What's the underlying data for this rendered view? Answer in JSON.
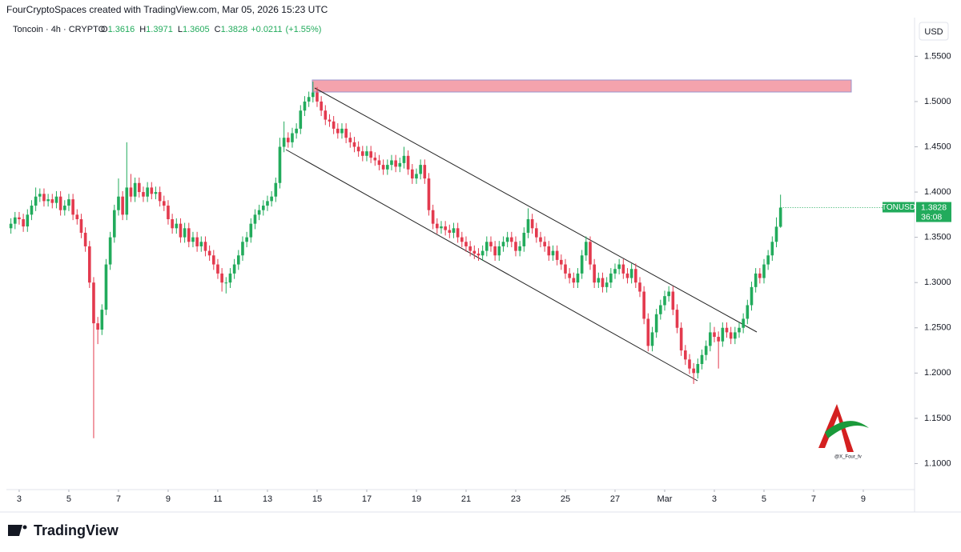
{
  "header": {
    "credit": "FourCryptoSpaces created with TradingView.com, Mar 05, 2026 15:23 UTC",
    "watermark": "@X_Four_fv",
    "brand": "TradingView"
  },
  "chart_data": {
    "type": "candlestick",
    "title": "Toncoin · 4h · CRYPTO",
    "ohlc_legend": {
      "labels": [
        "O",
        "H",
        "L",
        "C"
      ],
      "values": [
        1.3616,
        1.3971,
        1.3605,
        1.3828
      ],
      "change": "+0.0211",
      "change_pct": "(+1.55%)"
    },
    "currency": "USD",
    "price_tag": {
      "symbol": "TONUSD",
      "countdown": "36:08"
    },
    "up_color": "#22ab5c",
    "down_color": "#e33a4e",
    "xlim": [
      -0.7,
      218
    ],
    "ylim": [
      1.073,
      1.568
    ],
    "xticks": [
      {
        "value": 2,
        "label": "3"
      },
      {
        "value": 14,
        "label": "5"
      },
      {
        "value": 26,
        "label": "7"
      },
      {
        "value": 38,
        "label": "9"
      },
      {
        "value": 50,
        "label": "11"
      },
      {
        "value": 62,
        "label": "13"
      },
      {
        "value": 74,
        "label": "15"
      },
      {
        "value": 86,
        "label": "17"
      },
      {
        "value": 98,
        "label": "19"
      },
      {
        "value": 110,
        "label": "21"
      },
      {
        "value": 122,
        "label": "23"
      },
      {
        "value": 134,
        "label": "25"
      },
      {
        "value": 146,
        "label": "27"
      },
      {
        "value": 158,
        "label": "Mar"
      },
      {
        "value": 170,
        "label": "3"
      },
      {
        "value": 182,
        "label": "5"
      },
      {
        "value": 194,
        "label": "7"
      },
      {
        "value": 206,
        "label": "9"
      }
    ],
    "yticks": [
      {
        "value": 1.1,
        "label": "1.1000"
      },
      {
        "value": 1.15,
        "label": "1.1500"
      },
      {
        "value": 1.2,
        "label": "1.2000"
      },
      {
        "value": 1.25,
        "label": "1.2500"
      },
      {
        "value": 1.3,
        "label": "1.3000"
      },
      {
        "value": 1.35,
        "label": "1.3500"
      },
      {
        "value": 1.4,
        "label": "1.4000"
      },
      {
        "value": 1.45,
        "label": "1.4500"
      },
      {
        "value": 1.5,
        "label": "1.5000"
      },
      {
        "value": 1.55,
        "label": "1.5500"
      }
    ],
    "candles": [
      [
        1.36,
        1.371,
        1.354,
        1.365
      ],
      [
        1.365,
        1.378,
        1.359,
        1.372
      ],
      [
        1.372,
        1.378,
        1.364,
        1.37
      ],
      [
        1.37,
        1.376,
        1.356,
        1.362
      ],
      [
        1.362,
        1.381,
        1.356,
        1.375
      ],
      [
        1.375,
        1.391,
        1.369,
        1.385
      ],
      [
        1.385,
        1.405,
        1.379,
        1.395
      ],
      [
        1.395,
        1.404,
        1.389,
        1.398
      ],
      [
        1.398,
        1.404,
        1.384,
        1.39
      ],
      [
        1.39,
        1.398,
        1.384,
        1.392
      ],
      [
        1.392,
        1.398,
        1.382,
        1.388
      ],
      [
        1.388,
        1.401,
        1.382,
        1.395
      ],
      [
        1.395,
        1.401,
        1.374,
        1.38
      ],
      [
        1.38,
        1.391,
        1.374,
        1.385
      ],
      [
        1.385,
        1.398,
        1.379,
        1.392
      ],
      [
        1.392,
        1.398,
        1.369,
        1.375
      ],
      [
        1.375,
        1.381,
        1.364,
        1.37
      ],
      [
        1.37,
        1.376,
        1.349,
        1.355
      ],
      [
        1.355,
        1.361,
        1.334,
        1.34
      ],
      [
        1.34,
        1.346,
        1.294,
        1.3
      ],
      [
        1.3,
        1.306,
        1.128,
        1.255
      ],
      [
        1.255,
        1.262,
        1.232,
        1.248
      ],
      [
        1.248,
        1.276,
        1.242,
        1.27
      ],
      [
        1.27,
        1.326,
        1.264,
        1.32
      ],
      [
        1.32,
        1.356,
        1.314,
        1.35
      ],
      [
        1.35,
        1.386,
        1.344,
        1.38
      ],
      [
        1.38,
        1.415,
        1.374,
        1.395
      ],
      [
        1.395,
        1.401,
        1.369,
        1.375
      ],
      [
        1.375,
        1.455,
        1.369,
        1.405
      ],
      [
        1.405,
        1.42,
        1.389,
        1.395
      ],
      [
        1.395,
        1.416,
        1.389,
        1.41
      ],
      [
        1.41,
        1.416,
        1.394,
        1.4
      ],
      [
        1.4,
        1.406,
        1.389,
        1.395
      ],
      [
        1.395,
        1.411,
        1.389,
        1.405
      ],
      [
        1.405,
        1.411,
        1.392,
        1.398
      ],
      [
        1.398,
        1.406,
        1.392,
        1.4
      ],
      [
        1.4,
        1.406,
        1.384,
        1.39
      ],
      [
        1.39,
        1.396,
        1.379,
        1.385
      ],
      [
        1.385,
        1.391,
        1.364,
        1.37
      ],
      [
        1.37,
        1.376,
        1.354,
        1.36
      ],
      [
        1.36,
        1.371,
        1.354,
        1.365
      ],
      [
        1.365,
        1.371,
        1.344,
        1.35
      ],
      [
        1.35,
        1.366,
        1.344,
        1.36
      ],
      [
        1.36,
        1.366,
        1.339,
        1.345
      ],
      [
        1.345,
        1.356,
        1.339,
        1.35
      ],
      [
        1.35,
        1.356,
        1.334,
        1.34
      ],
      [
        1.34,
        1.351,
        1.334,
        1.345
      ],
      [
        1.345,
        1.351,
        1.329,
        1.335
      ],
      [
        1.335,
        1.341,
        1.324,
        1.33
      ],
      [
        1.33,
        1.336,
        1.314,
        1.32
      ],
      [
        1.32,
        1.326,
        1.304,
        1.31
      ],
      [
        1.31,
        1.316,
        1.29,
        1.3
      ],
      [
        1.3,
        1.306,
        1.288,
        1.3
      ],
      [
        1.3,
        1.316,
        1.294,
        1.31
      ],
      [
        1.31,
        1.326,
        1.304,
        1.32
      ],
      [
        1.32,
        1.336,
        1.314,
        1.33
      ],
      [
        1.33,
        1.351,
        1.324,
        1.345
      ],
      [
        1.345,
        1.356,
        1.339,
        1.35
      ],
      [
        1.35,
        1.371,
        1.344,
        1.365
      ],
      [
        1.365,
        1.381,
        1.359,
        1.375
      ],
      [
        1.375,
        1.386,
        1.369,
        1.38
      ],
      [
        1.38,
        1.391,
        1.374,
        1.385
      ],
      [
        1.385,
        1.396,
        1.379,
        1.39
      ],
      [
        1.39,
        1.401,
        1.384,
        1.395
      ],
      [
        1.395,
        1.416,
        1.389,
        1.41
      ],
      [
        1.41,
        1.46,
        1.404,
        1.45
      ],
      [
        1.45,
        1.478,
        1.444,
        1.46
      ],
      [
        1.46,
        1.466,
        1.449,
        1.455
      ],
      [
        1.455,
        1.471,
        1.449,
        1.465
      ],
      [
        1.465,
        1.476,
        1.459,
        1.47
      ],
      [
        1.47,
        1.496,
        1.464,
        1.49
      ],
      [
        1.49,
        1.506,
        1.484,
        1.5
      ],
      [
        1.5,
        1.511,
        1.494,
        1.505
      ],
      [
        1.505,
        1.522,
        1.499,
        1.51
      ],
      [
        1.51,
        1.516,
        1.494,
        1.5
      ],
      [
        1.5,
        1.506,
        1.484,
        1.49
      ],
      [
        1.49,
        1.496,
        1.474,
        1.48
      ],
      [
        1.48,
        1.486,
        1.472,
        1.478
      ],
      [
        1.478,
        1.484,
        1.464,
        1.47
      ],
      [
        1.47,
        1.476,
        1.459,
        1.465
      ],
      [
        1.465,
        1.476,
        1.459,
        1.47
      ],
      [
        1.47,
        1.476,
        1.454,
        1.46
      ],
      [
        1.46,
        1.466,
        1.449,
        1.455
      ],
      [
        1.455,
        1.461,
        1.444,
        1.45
      ],
      [
        1.45,
        1.456,
        1.439,
        1.445
      ],
      [
        1.445,
        1.451,
        1.434,
        1.44
      ],
      [
        1.44,
        1.451,
        1.434,
        1.445
      ],
      [
        1.445,
        1.451,
        1.432,
        1.438
      ],
      [
        1.438,
        1.444,
        1.429,
        1.435
      ],
      [
        1.435,
        1.441,
        1.424,
        1.43
      ],
      [
        1.43,
        1.436,
        1.419,
        1.425
      ],
      [
        1.425,
        1.436,
        1.419,
        1.43
      ],
      [
        1.43,
        1.441,
        1.424,
        1.435
      ],
      [
        1.435,
        1.441,
        1.422,
        1.428
      ],
      [
        1.428,
        1.438,
        1.422,
        1.432
      ],
      [
        1.432,
        1.45,
        1.426,
        1.44
      ],
      [
        1.44,
        1.446,
        1.419,
        1.425
      ],
      [
        1.425,
        1.431,
        1.409,
        1.415
      ],
      [
        1.415,
        1.426,
        1.409,
        1.42
      ],
      [
        1.42,
        1.436,
        1.414,
        1.43
      ],
      [
        1.43,
        1.436,
        1.409,
        1.415
      ],
      [
        1.415,
        1.421,
        1.374,
        1.38
      ],
      [
        1.38,
        1.386,
        1.359,
        1.365
      ],
      [
        1.365,
        1.371,
        1.354,
        1.36
      ],
      [
        1.36,
        1.368,
        1.354,
        1.362
      ],
      [
        1.362,
        1.368,
        1.352,
        1.358
      ],
      [
        1.358,
        1.364,
        1.349,
        1.355
      ],
      [
        1.355,
        1.366,
        1.349,
        1.36
      ],
      [
        1.36,
        1.366,
        1.344,
        1.35
      ],
      [
        1.35,
        1.356,
        1.339,
        1.345
      ],
      [
        1.345,
        1.351,
        1.334,
        1.34
      ],
      [
        1.34,
        1.346,
        1.329,
        1.335
      ],
      [
        1.335,
        1.341,
        1.326,
        1.332
      ],
      [
        1.332,
        1.338,
        1.324,
        1.33
      ],
      [
        1.33,
        1.341,
        1.324,
        1.335
      ],
      [
        1.335,
        1.351,
        1.329,
        1.345
      ],
      [
        1.345,
        1.351,
        1.334,
        1.34
      ],
      [
        1.34,
        1.346,
        1.324,
        1.33
      ],
      [
        1.33,
        1.346,
        1.324,
        1.34
      ],
      [
        1.34,
        1.351,
        1.334,
        1.345
      ],
      [
        1.345,
        1.356,
        1.339,
        1.35
      ],
      [
        1.35,
        1.356,
        1.339,
        1.345
      ],
      [
        1.345,
        1.351,
        1.329,
        1.335
      ],
      [
        1.335,
        1.346,
        1.329,
        1.34
      ],
      [
        1.34,
        1.361,
        1.334,
        1.355
      ],
      [
        1.355,
        1.382,
        1.349,
        1.37
      ],
      [
        1.37,
        1.376,
        1.354,
        1.36
      ],
      [
        1.36,
        1.366,
        1.344,
        1.35
      ],
      [
        1.35,
        1.356,
        1.339,
        1.345
      ],
      [
        1.345,
        1.351,
        1.334,
        1.34
      ],
      [
        1.34,
        1.346,
        1.324,
        1.33
      ],
      [
        1.33,
        1.341,
        1.324,
        1.335
      ],
      [
        1.335,
        1.341,
        1.319,
        1.325
      ],
      [
        1.325,
        1.331,
        1.314,
        1.32
      ],
      [
        1.32,
        1.326,
        1.304,
        1.31
      ],
      [
        1.31,
        1.316,
        1.299,
        1.305
      ],
      [
        1.305,
        1.311,
        1.294,
        1.3
      ],
      [
        1.3,
        1.316,
        1.294,
        1.31
      ],
      [
        1.31,
        1.336,
        1.304,
        1.33
      ],
      [
        1.33,
        1.351,
        1.324,
        1.345
      ],
      [
        1.345,
        1.351,
        1.314,
        1.32
      ],
      [
        1.32,
        1.326,
        1.294,
        1.3
      ],
      [
        1.3,
        1.311,
        1.294,
        1.305
      ],
      [
        1.305,
        1.311,
        1.289,
        1.295
      ],
      [
        1.295,
        1.306,
        1.289,
        1.3
      ],
      [
        1.3,
        1.316,
        1.294,
        1.31
      ],
      [
        1.31,
        1.321,
        1.304,
        1.315
      ],
      [
        1.315,
        1.326,
        1.309,
        1.32
      ],
      [
        1.32,
        1.326,
        1.304,
        1.31
      ],
      [
        1.31,
        1.316,
        1.299,
        1.305
      ],
      [
        1.305,
        1.321,
        1.299,
        1.315
      ],
      [
        1.315,
        1.321,
        1.294,
        1.3
      ],
      [
        1.3,
        1.306,
        1.284,
        1.29
      ],
      [
        1.29,
        1.296,
        1.254,
        1.26
      ],
      [
        1.26,
        1.266,
        1.224,
        1.23
      ],
      [
        1.23,
        1.251,
        1.224,
        1.245
      ],
      [
        1.245,
        1.271,
        1.239,
        1.265
      ],
      [
        1.265,
        1.281,
        1.259,
        1.275
      ],
      [
        1.275,
        1.291,
        1.269,
        1.285
      ],
      [
        1.285,
        1.296,
        1.279,
        1.29
      ],
      [
        1.29,
        1.296,
        1.264,
        1.27
      ],
      [
        1.27,
        1.276,
        1.244,
        1.25
      ],
      [
        1.25,
        1.256,
        1.219,
        1.225
      ],
      [
        1.225,
        1.231,
        1.209,
        1.215
      ],
      [
        1.215,
        1.221,
        1.199,
        1.205
      ],
      [
        1.205,
        1.211,
        1.188,
        1.2
      ],
      [
        1.2,
        1.216,
        1.194,
        1.21
      ],
      [
        1.21,
        1.226,
        1.204,
        1.22
      ],
      [
        1.22,
        1.236,
        1.214,
        1.23
      ],
      [
        1.23,
        1.256,
        1.224,
        1.245
      ],
      [
        1.245,
        1.251,
        1.234,
        1.24
      ],
      [
        1.24,
        1.246,
        1.205,
        1.235
      ],
      [
        1.235,
        1.256,
        1.229,
        1.25
      ],
      [
        1.25,
        1.256,
        1.239,
        1.245
      ],
      [
        1.245,
        1.251,
        1.232,
        1.238
      ],
      [
        1.238,
        1.251,
        1.232,
        1.245
      ],
      [
        1.245,
        1.256,
        1.239,
        1.25
      ],
      [
        1.25,
        1.266,
        1.244,
        1.26
      ],
      [
        1.26,
        1.281,
        1.254,
        1.275
      ],
      [
        1.275,
        1.301,
        1.269,
        1.295
      ],
      [
        1.295,
        1.316,
        1.289,
        1.31
      ],
      [
        1.31,
        1.316,
        1.299,
        1.305
      ],
      [
        1.305,
        1.326,
        1.299,
        1.32
      ],
      [
        1.32,
        1.336,
        1.314,
        1.33
      ],
      [
        1.33,
        1.351,
        1.324,
        1.345
      ],
      [
        1.345,
        1.372,
        1.339,
        1.3617
      ],
      [
        1.3616,
        1.3971,
        1.3605,
        1.3828
      ]
    ]
  }
}
